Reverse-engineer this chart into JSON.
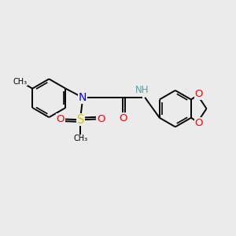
{
  "bg_color": "#ebebeb",
  "bond_color": "#000000",
  "bond_lw": 1.4,
  "atom_colors": {
    "N": "#0000ff",
    "O": "#ff0000",
    "S": "#cccc00",
    "H": "#5f9ea0",
    "C": "#000000"
  },
  "font_size": 8.5,
  "xlim": [
    0,
    10
  ],
  "ylim": [
    0,
    10
  ]
}
